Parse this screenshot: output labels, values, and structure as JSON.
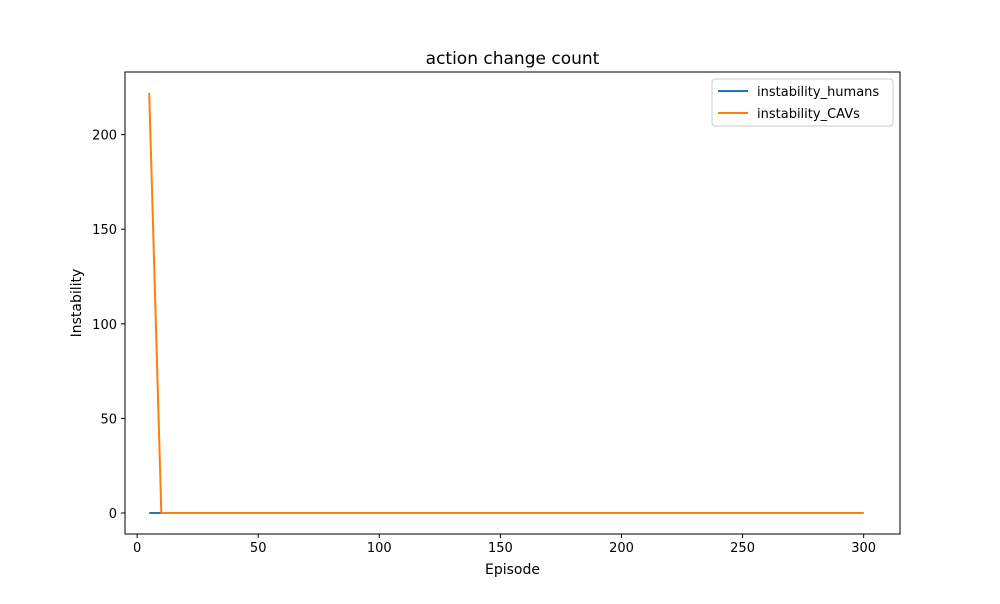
{
  "chart_data": {
    "type": "line",
    "title": "action change count",
    "xlabel": "Episode",
    "ylabel": "Instability",
    "xlim": [
      -5,
      315
    ],
    "ylim": [
      -11.1,
      233.1
    ],
    "xticks": [
      0,
      50,
      100,
      150,
      200,
      250,
      300
    ],
    "yticks": [
      0,
      50,
      100,
      150,
      200
    ],
    "grid": false,
    "legend_position": "top-right",
    "series": [
      {
        "name": "instability_humans",
        "color": "#1f77b4",
        "x": [
          5,
          10,
          15,
          20,
          25,
          30,
          35,
          40,
          45,
          50,
          55,
          60,
          65,
          70,
          75,
          80,
          85,
          90,
          95,
          100,
          105,
          110,
          115,
          120,
          125,
          130,
          135,
          140,
          145,
          150,
          155,
          160,
          165,
          170,
          175,
          180,
          185,
          190,
          195,
          200,
          205,
          210,
          215,
          220,
          225,
          230,
          235,
          240,
          245,
          250,
          255,
          260,
          265,
          270,
          275,
          280,
          285,
          290,
          295,
          300
        ],
        "y": [
          0,
          0,
          0,
          0,
          0,
          0,
          0,
          0,
          0,
          0,
          0,
          0,
          0,
          0,
          0,
          0,
          0,
          0,
          0,
          0,
          0,
          0,
          0,
          0,
          0,
          0,
          0,
          0,
          0,
          0,
          0,
          0,
          0,
          0,
          0,
          0,
          0,
          0,
          0,
          0,
          0,
          0,
          0,
          0,
          0,
          0,
          0,
          0,
          0,
          0,
          0,
          0,
          0,
          0,
          0,
          0,
          0,
          0,
          0,
          0
        ]
      },
      {
        "name": "instability_CAVs",
        "color": "#ff7f0e",
        "x": [
          5,
          10,
          15,
          20,
          25,
          30,
          35,
          40,
          45,
          50,
          55,
          60,
          65,
          70,
          75,
          80,
          85,
          90,
          95,
          100,
          105,
          110,
          115,
          120,
          125,
          130,
          135,
          140,
          145,
          150,
          155,
          160,
          165,
          170,
          175,
          180,
          185,
          190,
          195,
          200,
          205,
          210,
          215,
          220,
          225,
          230,
          235,
          240,
          245,
          250,
          255,
          260,
          265,
          270,
          275,
          280,
          285,
          290,
          295,
          300
        ],
        "y": [
          222,
          0,
          0,
          0,
          0,
          0,
          0,
          0,
          0,
          0,
          0,
          0,
          0,
          0,
          0,
          0,
          0,
          0,
          0,
          0,
          0,
          0,
          0,
          0,
          0,
          0,
          0,
          0,
          0,
          0,
          0,
          0,
          0,
          0,
          0,
          0,
          0,
          0,
          0,
          0,
          0,
          0,
          0,
          0,
          0,
          0,
          0,
          0,
          0,
          0,
          0,
          0,
          0,
          0,
          0,
          0,
          0,
          0,
          0,
          0
        ]
      }
    ]
  }
}
